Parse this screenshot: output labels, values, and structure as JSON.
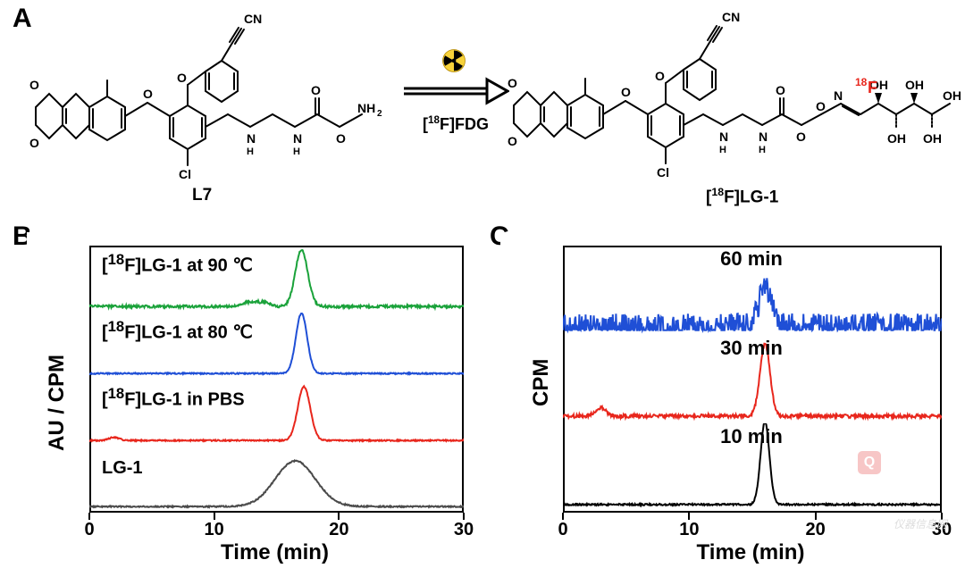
{
  "panelA": {
    "label": "A",
    "reactant_name": "L7",
    "product_name": "[<sup>18</sup>F]LG-1",
    "arrow_reagent": "[<sup>18</sup>F]FDG",
    "f18_label": "18",
    "f_label": "F",
    "f_color": "#e8261c"
  },
  "panelB": {
    "label": "B",
    "y_label": "AU / CPM",
    "x_label": "Time (min)",
    "x_ticks": [
      0,
      10,
      20,
      30
    ],
    "xlim": [
      0,
      30
    ],
    "frame_color": "#000000",
    "background": "#ffffff",
    "line_width": 2,
    "traces": [
      {
        "label": "[<sup>18</sup>F]LG-1 at 90 ℃",
        "color": "#1aa23a",
        "peak_x": 17.0,
        "peak_h": 0.9,
        "noise": 0.02,
        "minor_bumps": [
          [
            12.5,
            0.05
          ],
          [
            13.2,
            0.06
          ],
          [
            14.1,
            0.07
          ]
        ],
        "width": 0.5
      },
      {
        "label": "[<sup>18</sup>F]LG-1 at 80 ℃",
        "color": "#1f4fd6",
        "peak_x": 17.0,
        "peak_h": 0.95,
        "noise": 0.01,
        "minor_bumps": [],
        "width": 0.45
      },
      {
        "label": "[<sup>18</sup>F]LG-1 in PBS",
        "color": "#e8261c",
        "peak_x": 17.2,
        "peak_h": 0.85,
        "noise": 0.01,
        "minor_bumps": [
          [
            2.0,
            0.05
          ]
        ],
        "width": 0.5
      },
      {
        "label": "LG-1",
        "color": "#4a4a4a",
        "peak_x": 16.5,
        "peak_h": 0.72,
        "noise": 0.01,
        "minor_bumps": [],
        "width": 1.6
      }
    ]
  },
  "panelC": {
    "label": "C",
    "y_label": "CPM",
    "x_label": "Time (min)",
    "x_ticks": [
      0,
      10,
      20,
      30
    ],
    "xlim": [
      0,
      30
    ],
    "frame_color": "#000000",
    "background": "#ffffff",
    "line_width": 2,
    "traces": [
      {
        "label": "60 min",
        "color": "#1f4fd6",
        "peak_x": 16.0,
        "peak_h": 0.45,
        "noise": 0.16,
        "minor_bumps": [],
        "width": 0.5
      },
      {
        "label": "30 min",
        "color": "#e8261c",
        "peak_x": 16.0,
        "peak_h": 0.85,
        "noise": 0.02,
        "minor_bumps": [
          [
            3.0,
            0.1
          ]
        ],
        "width": 0.4
      },
      {
        "label": "10 min",
        "color": "#000000",
        "peak_x": 16.0,
        "peak_h": 0.98,
        "noise": 0.01,
        "minor_bumps": [],
        "width": 0.35
      }
    ]
  },
  "radiation_icon": {
    "bg": "#f7d23a",
    "blades": "#000000",
    "border": "#b58900"
  },
  "watermark": "仪器信息网"
}
